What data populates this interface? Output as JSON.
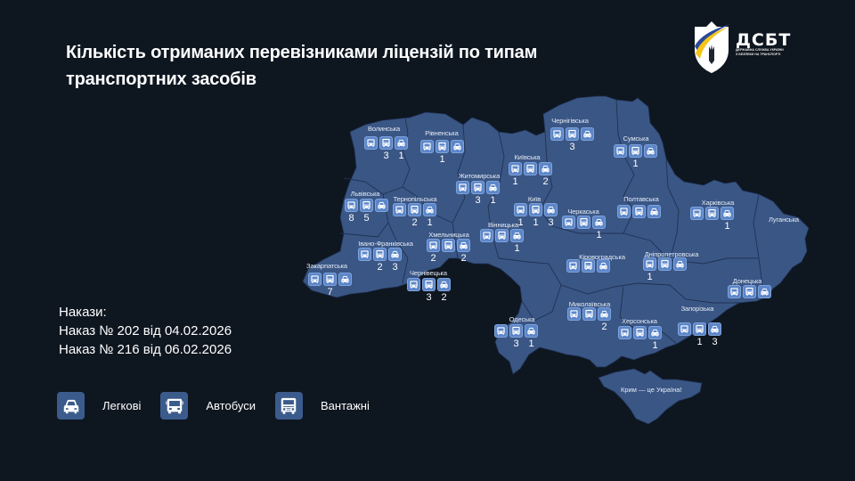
{
  "title": "Кількість отриманих перевізниками ліцензій по типам транспортних засобів",
  "logo": {
    "abbr": "ДСБТ",
    "subtitle_line1": "ДЕРЖАВНА СЛУЖБА УКРАЇНИ",
    "subtitle_line2": "З БЕЗПЕКИ НА ТРАНСПОРТІ",
    "icon": "shield-trident-icon"
  },
  "colors": {
    "background": "#0e1620",
    "map_fill": "#3a5685",
    "map_border": "#1f3253",
    "icon_tile": "#5c86c9",
    "legend_tile": "#3a5b8c",
    "text": "#ffffff"
  },
  "icon_order": [
    "bus",
    "truck",
    "car"
  ],
  "regions": [
    {
      "name": "Волинська",
      "bus": "",
      "truck": "3",
      "car": "1"
    },
    {
      "name": "Рівненська",
      "bus": "",
      "truck": "1",
      "car": ""
    },
    {
      "name": "Чернігівська",
      "bus": "",
      "truck": "3",
      "car": ""
    },
    {
      "name": "Сумська",
      "bus": "",
      "truck": "1",
      "car": ""
    },
    {
      "name": "Київська",
      "bus": "1",
      "truck": "",
      "car": "2"
    },
    {
      "name": "Житомирська",
      "bus": "",
      "truck": "3",
      "car": "1"
    },
    {
      "name": "Львівська",
      "bus": "8",
      "truck": "5",
      "car": ""
    },
    {
      "name": "Тернопільська",
      "bus": "",
      "truck": "2",
      "car": "1"
    },
    {
      "name": "Київ",
      "bus": "1",
      "truck": "1",
      "car": "3"
    },
    {
      "name": "Черкаська",
      "bus": "",
      "truck": "",
      "car": "1"
    },
    {
      "name": "Вінницька",
      "bus": "",
      "truck": "",
      "car": "1"
    },
    {
      "name": "Полтавська",
      "bus": "",
      "truck": "",
      "car": ""
    },
    {
      "name": "Харківська",
      "bus": "",
      "truck": "",
      "car": "1"
    },
    {
      "name": "Луганська",
      "bus": "",
      "truck": "",
      "car": ""
    },
    {
      "name": "Хмельницька",
      "bus": "2",
      "truck": "",
      "car": "2"
    },
    {
      "name": "Івано-Франківська",
      "bus": "",
      "truck": "2",
      "car": "3"
    },
    {
      "name": "Закарпатська",
      "bus": "",
      "truck": "7",
      "car": ""
    },
    {
      "name": "Чернівецька",
      "bus": "",
      "truck": "3",
      "car": "2"
    },
    {
      "name": "Кіровоградська",
      "bus": "",
      "truck": "",
      "car": ""
    },
    {
      "name": "Дніпропетровська",
      "bus": "1",
      "truck": "",
      "car": ""
    },
    {
      "name": "Донецька",
      "bus": "",
      "truck": "",
      "car": ""
    },
    {
      "name": "Миколаївська",
      "bus": "",
      "truck": "",
      "car": "2"
    },
    {
      "name": "Одеська",
      "bus": "",
      "truck": "3",
      "car": "1"
    },
    {
      "name": "Херсонська",
      "bus": "",
      "truck": "",
      "car": "1"
    },
    {
      "name": "Запорізька",
      "bus": "",
      "truck": "1",
      "car": "3"
    }
  ],
  "crimea_label": "Крим — це Україна!",
  "orders": {
    "heading": "Накази:",
    "items": [
      "Наказ № 202 від 04.02.2026",
      "Наказ № 216 від 06.02.2026"
    ]
  },
  "legend": [
    {
      "icon": "car-icon",
      "label": "Легкові"
    },
    {
      "icon": "bus-icon",
      "label": "Автобуси"
    },
    {
      "icon": "truck-icon",
      "label": "Вантажні"
    }
  ]
}
